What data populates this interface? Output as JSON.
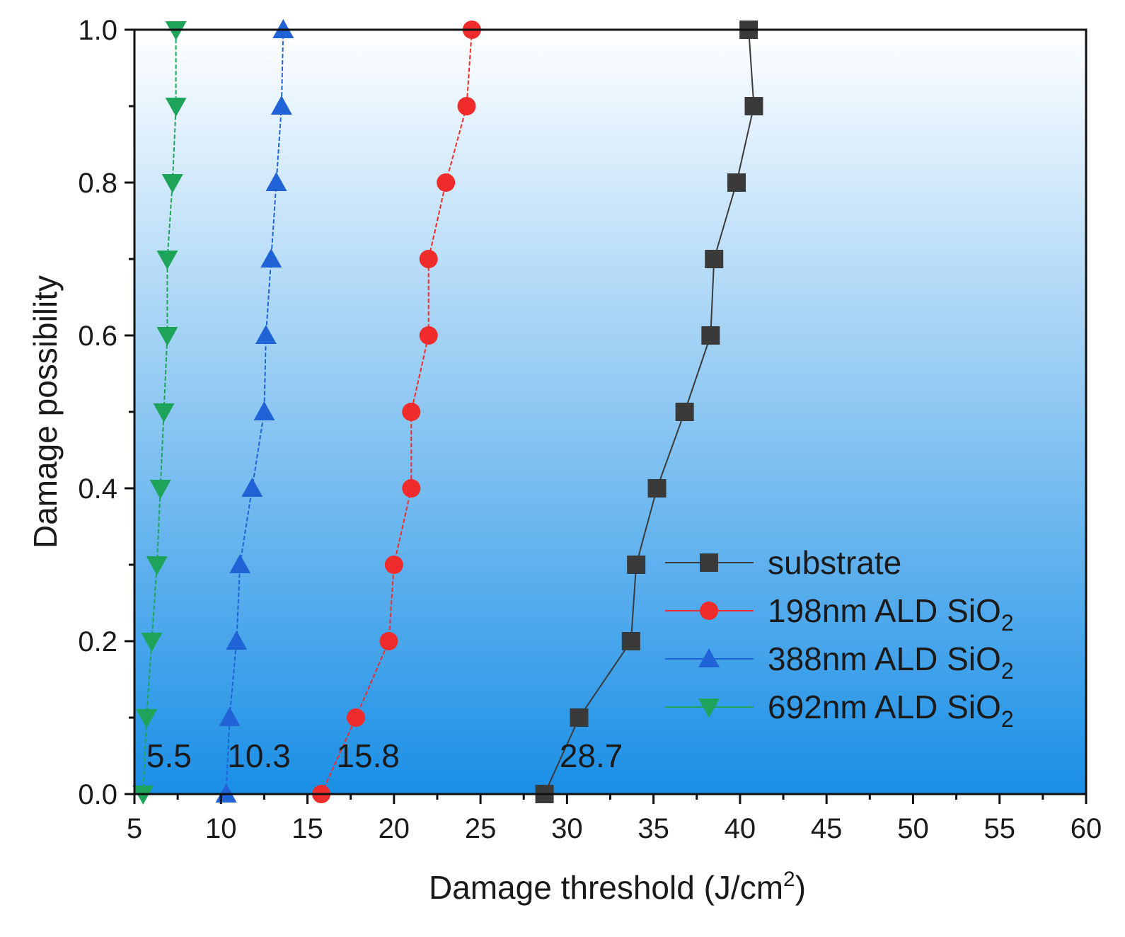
{
  "chart_data": {
    "type": "line",
    "title": "",
    "xlabel": "Damage threshold (J/cm",
    "xlabel_sup": "2",
    "xlabel_end": ")",
    "ylabel": "Damage possibility",
    "xlim": [
      5,
      60
    ],
    "ylim": [
      0.0,
      1.0
    ],
    "x_ticks": [
      "5",
      "10",
      "15",
      "20",
      "25",
      "30",
      "35",
      "40",
      "45",
      "50",
      "55",
      "60"
    ],
    "y_ticks": [
      "0.0",
      "0.2",
      "0.4",
      "0.6",
      "0.8",
      "1.0"
    ],
    "legend_position": "bottom-right",
    "background": {
      "top": "#ffffff",
      "bottom": "#1a8fe6"
    },
    "series": [
      {
        "name": "substrate",
        "legend_main": "substrate",
        "legend_sub": "",
        "color": "#3a3a3a",
        "marker": "square",
        "points": [
          [
            28.7,
            0.0
          ],
          [
            30.7,
            0.1
          ],
          [
            33.7,
            0.2
          ],
          [
            34.0,
            0.3
          ],
          [
            35.2,
            0.4
          ],
          [
            36.8,
            0.5
          ],
          [
            38.3,
            0.6
          ],
          [
            38.5,
            0.7
          ],
          [
            39.8,
            0.8
          ],
          [
            40.8,
            0.9
          ],
          [
            40.5,
            1.0
          ]
        ]
      },
      {
        "name": "198nm ALD SiO2",
        "legend_main": "198nm ALD SiO",
        "legend_sub": "2",
        "color": "#f02b2b",
        "marker": "circle",
        "points": [
          [
            15.8,
            0.0
          ],
          [
            17.8,
            0.1
          ],
          [
            19.7,
            0.2
          ],
          [
            20.0,
            0.3
          ],
          [
            21.0,
            0.4
          ],
          [
            21.0,
            0.5
          ],
          [
            22.0,
            0.6
          ],
          [
            22.0,
            0.7
          ],
          [
            23.0,
            0.8
          ],
          [
            24.2,
            0.9
          ],
          [
            24.5,
            1.0
          ]
        ]
      },
      {
        "name": "388nm ALD SiO2",
        "legend_main": "388nm ALD SiO",
        "legend_sub": "2",
        "color": "#1f63d6",
        "marker": "triangle-up",
        "points": [
          [
            10.3,
            0.0
          ],
          [
            10.5,
            0.1
          ],
          [
            10.9,
            0.2
          ],
          [
            11.1,
            0.3
          ],
          [
            11.8,
            0.4
          ],
          [
            12.5,
            0.5
          ],
          [
            12.6,
            0.6
          ],
          [
            12.9,
            0.7
          ],
          [
            13.2,
            0.8
          ],
          [
            13.5,
            0.9
          ],
          [
            13.6,
            1.0
          ]
        ]
      },
      {
        "name": "692nm ALD SiO2",
        "legend_main": "692nm ALD SiO",
        "legend_sub": "2",
        "color": "#1ea35a",
        "marker": "triangle-down",
        "points": [
          [
            5.5,
            0.0
          ],
          [
            5.7,
            0.1
          ],
          [
            6.0,
            0.2
          ],
          [
            6.3,
            0.3
          ],
          [
            6.5,
            0.4
          ],
          [
            6.7,
            0.5
          ],
          [
            6.9,
            0.6
          ],
          [
            6.9,
            0.7
          ],
          [
            7.2,
            0.8
          ],
          [
            7.4,
            0.9
          ],
          [
            7.4,
            1.0
          ]
        ]
      }
    ],
    "annotations": [
      {
        "text": "5.5",
        "x": 7.0,
        "y": 0.035
      },
      {
        "text": "10.3",
        "x": 12.2,
        "y": 0.035
      },
      {
        "text": "15.8",
        "x": 18.5,
        "y": 0.035
      },
      {
        "text": "28.7",
        "x": 31.4,
        "y": 0.035
      }
    ]
  }
}
